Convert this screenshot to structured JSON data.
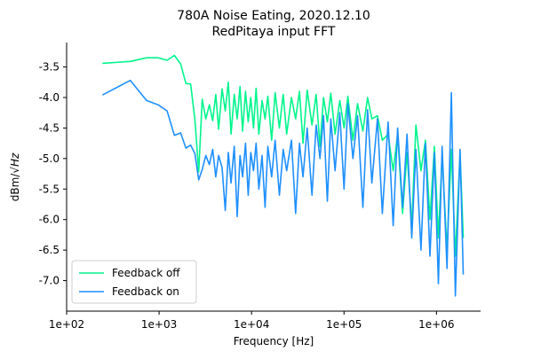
{
  "chart_data": {
    "type": "line",
    "title": "780A Noise Eating, 2020.12.10",
    "subtitle": "RedPitaya input FFT",
    "xlabel": "Frequency [Hz]",
    "ylabel_text": "dBm/",
    "ylabel_sqrt": "Hz",
    "xscale": "log",
    "xlim": [
      100,
      3000000
    ],
    "ylim": [
      -7.5,
      -3.1
    ],
    "x_ticks": [
      100,
      1000,
      10000,
      100000,
      1000000
    ],
    "x_tick_labels": [
      "1e+02",
      "1e+03",
      "1e+04",
      "1e+05",
      "1e+06"
    ],
    "y_ticks": [
      -3.5,
      -4.0,
      -4.5,
      -5.0,
      -5.5,
      -6.0,
      -6.5,
      -7.0
    ],
    "y_tick_labels": [
      "-3.5",
      "-4.0",
      "-4.5",
      "-5.0",
      "-5.5",
      "-6.0",
      "-6.5",
      "-7.0"
    ],
    "grid": false,
    "legend_position": "lower-left",
    "series": [
      {
        "name": "Feedback off",
        "color": "#00f58c",
        "x": [
          244,
          488,
          732,
          976,
          1220,
          1464,
          1708,
          1952,
          2196,
          2440,
          2684,
          2928,
          3200,
          3500,
          3800,
          4100,
          4400,
          4800,
          5200,
          5600,
          6000,
          6500,
          7000,
          7500,
          8000,
          8600,
          9200,
          9800,
          10500,
          11200,
          12000,
          13000,
          14000,
          15000,
          16500,
          18000,
          20000,
          22000,
          24000,
          27000,
          30000,
          33000,
          36000,
          40000,
          45000,
          50000,
          55000,
          60000,
          66000,
          72000,
          80000,
          90000,
          100000,
          110000,
          125000,
          140000,
          160000,
          180000,
          200000,
          230000,
          260000,
          300000,
          340000,
          380000,
          430000,
          480000,
          540000,
          600000,
          680000,
          760000,
          850000,
          950000,
          1050000,
          1150000,
          1300000,
          1450000,
          1600000,
          1800000,
          1950000
        ],
        "y": [
          -3.44,
          -3.41,
          -3.35,
          -3.35,
          -3.39,
          -3.31,
          -3.45,
          -3.77,
          -3.78,
          -4.36,
          -5.22,
          -4.03,
          -4.35,
          -4.12,
          -4.38,
          -3.95,
          -4.52,
          -3.86,
          -4.22,
          -3.75,
          -4.6,
          -3.95,
          -4.35,
          -3.82,
          -4.55,
          -3.9,
          -4.4,
          -4.0,
          -4.5,
          -3.85,
          -4.6,
          -4.05,
          -4.35,
          -3.98,
          -4.7,
          -3.92,
          -4.5,
          -3.95,
          -4.6,
          -4.0,
          -4.35,
          -3.9,
          -4.75,
          -3.88,
          -4.45,
          -3.95,
          -4.8,
          -4.0,
          -4.4,
          -3.93,
          -4.6,
          -4.05,
          -4.5,
          -3.98,
          -4.7,
          -4.1,
          -4.55,
          -4.0,
          -4.35,
          -4.3,
          -4.7,
          -4.6,
          -5.2,
          -4.6,
          -5.9,
          -4.9,
          -6.1,
          -4.45,
          -5.2,
          -4.7,
          -6.0,
          -4.8,
          -6.3,
          -4.95,
          -6.5,
          -4.85,
          -6.6,
          -4.9,
          -6.3
        ]
      },
      {
        "name": "Feedback on",
        "color": "#1e90ff",
        "x": [
          244,
          488,
          732,
          976,
          1220,
          1464,
          1708,
          1952,
          2196,
          2440,
          2684,
          2928,
          3200,
          3500,
          3800,
          4100,
          4400,
          4800,
          5200,
          5600,
          6000,
          6500,
          7000,
          7500,
          8000,
          8600,
          9200,
          9800,
          10500,
          11200,
          12000,
          13000,
          14000,
          15000,
          16500,
          18000,
          20000,
          22000,
          24000,
          27000,
          30000,
          33000,
          36000,
          40000,
          45000,
          50000,
          55000,
          60000,
          66000,
          72000,
          80000,
          90000,
          100000,
          110000,
          125000,
          140000,
          160000,
          180000,
          200000,
          230000,
          260000,
          300000,
          340000,
          380000,
          430000,
          480000,
          540000,
          600000,
          680000,
          760000,
          850000,
          950000,
          1050000,
          1150000,
          1300000,
          1450000,
          1600000,
          1800000,
          1950000
        ],
        "y": [
          -3.96,
          -3.72,
          -4.05,
          -4.12,
          -4.22,
          -4.62,
          -4.58,
          -4.83,
          -4.78,
          -4.92,
          -5.35,
          -5.18,
          -4.95,
          -5.1,
          -4.85,
          -5.3,
          -4.95,
          -5.15,
          -5.85,
          -4.9,
          -5.4,
          -4.8,
          -5.95,
          -4.95,
          -5.3,
          -4.75,
          -5.6,
          -4.9,
          -5.2,
          -4.75,
          -5.5,
          -4.95,
          -5.8,
          -4.8,
          -5.3,
          -4.7,
          -5.6,
          -4.85,
          -5.2,
          -4.7,
          -5.9,
          -4.75,
          -5.3,
          -4.5,
          -5.6,
          -4.45,
          -5.0,
          -4.3,
          -5.7,
          -4.35,
          -5.2,
          -4.25,
          -5.5,
          -4.1,
          -5.0,
          -4.3,
          -5.8,
          -4.2,
          -5.4,
          -4.35,
          -5.9,
          -4.4,
          -6.1,
          -4.5,
          -5.8,
          -4.6,
          -6.3,
          -4.85,
          -6.5,
          -4.75,
          -6.6,
          -4.9,
          -7.05,
          -4.8,
          -6.8,
          -3.92,
          -7.25,
          -4.85,
          -6.9
        ]
      }
    ]
  }
}
